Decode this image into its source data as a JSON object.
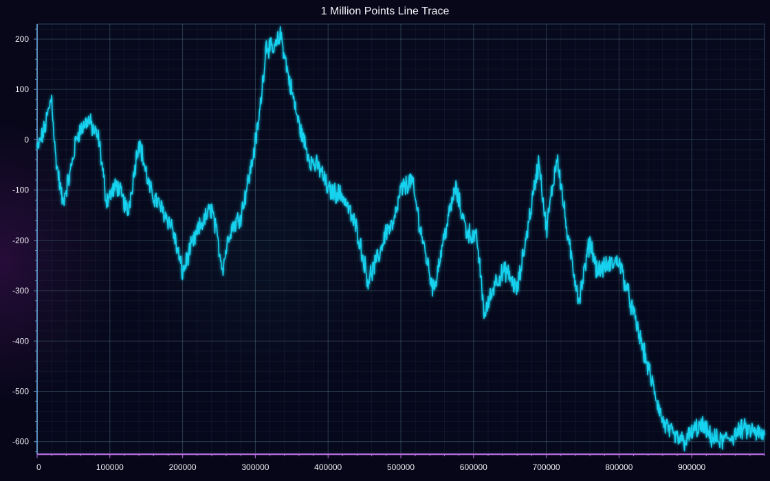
{
  "chart_data": {
    "type": "line",
    "title": "1 Million Points Line Trace",
    "xlabel": "",
    "ylabel": "",
    "xlim": [
      0,
      1000000
    ],
    "ylim": [
      -625,
      230
    ],
    "x_ticks": [
      0,
      100000,
      200000,
      300000,
      400000,
      500000,
      600000,
      700000,
      800000,
      900000
    ],
    "x_tick_labels": [
      "0",
      "100000",
      "200000",
      "300000",
      "400000",
      "500000",
      "600000",
      "700000",
      "800000",
      "900000"
    ],
    "y_ticks": [
      200,
      100,
      0,
      -100,
      -200,
      -300,
      -400,
      -500,
      -600
    ],
    "y_tick_labels": [
      "200",
      "100",
      "0",
      "-100",
      "-200",
      "-300",
      "-400",
      "-500",
      "-600"
    ],
    "grid": true,
    "legend": "none",
    "colors": {
      "line": "#19d3f0",
      "axis_left": "#5a8fbf",
      "axis_bottom": "#b06ad8"
    },
    "series": [
      {
        "x": [
          0,
          10000,
          20000,
          25000,
          35000,
          45000,
          55000,
          70000,
          85000,
          95000,
          110000,
          125000,
          140000,
          155000,
          170000,
          185000,
          200000,
          210000,
          225000,
          240000,
          255000,
          265000,
          280000,
          295000,
          305000,
          315000,
          325000,
          335000,
          345000,
          360000,
          375000,
          390000,
          400000,
          420000,
          440000,
          455000,
          470000,
          480000,
          490000,
          500000,
          515000,
          530000,
          545000,
          560000,
          575000,
          590000,
          605000,
          615000,
          630000,
          645000,
          660000,
          675000,
          690000,
          700000,
          715000,
          730000,
          745000,
          760000,
          770000,
          785000,
          800000,
          815000,
          830000,
          845000,
          860000,
          875000,
          890000,
          905000,
          915000,
          925000,
          940000,
          955000,
          970000,
          985000,
          1000000
        ],
        "y": [
          -20,
          20,
          85,
          -30,
          -125,
          -70,
          10,
          40,
          0,
          -120,
          -90,
          -145,
          0,
          -100,
          -135,
          -170,
          -265,
          -220,
          -170,
          -135,
          -255,
          -180,
          -150,
          -50,
          40,
          190,
          175,
          210,
          130,
          30,
          -40,
          -60,
          -100,
          -110,
          -180,
          -280,
          -230,
          -180,
          -170,
          -100,
          -80,
          -200,
          -300,
          -190,
          -95,
          -180,
          -200,
          -350,
          -280,
          -260,
          -300,
          -170,
          -40,
          -180,
          -30,
          -200,
          -320,
          -200,
          -260,
          -250,
          -240,
          -320,
          -400,
          -480,
          -560,
          -590,
          -600,
          -575,
          -570,
          -590,
          -600,
          -590,
          -575,
          -580,
          -590
        ]
      }
    ]
  }
}
